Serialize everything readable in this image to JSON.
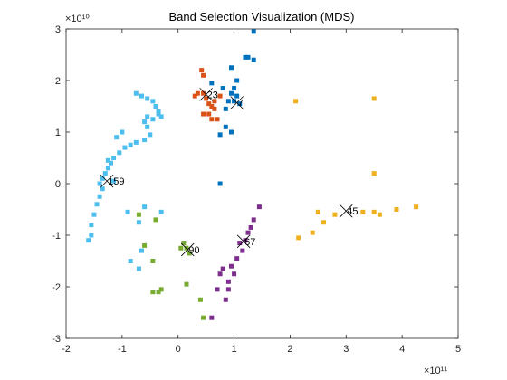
{
  "chart_data": {
    "type": "scatter",
    "title": "Band Selection Visualization (MDS)",
    "xlabel": "",
    "ylabel": "",
    "x_exponent_label": "×10¹¹",
    "y_exponent_label": "×10¹⁰",
    "xlim": [
      -2,
      5
    ],
    "ylim": [
      -3,
      3
    ],
    "x_ticks": [
      "-2",
      "-1",
      "0",
      "1",
      "2",
      "3",
      "4",
      "5"
    ],
    "y_ticks": [
      "-3",
      "-2",
      "-1",
      "0",
      "1",
      "2",
      "3"
    ],
    "grid": false,
    "legend": "none",
    "series": [
      {
        "color": "#0072BD",
        "points": [
          [
            1.35,
            2.95
          ],
          [
            1.2,
            2.45
          ],
          [
            1.25,
            2.45
          ],
          [
            1.35,
            2.4
          ],
          [
            0.95,
            2.25
          ],
          [
            1.05,
            2.0
          ],
          [
            0.6,
            1.95
          ],
          [
            0.8,
            1.85
          ],
          [
            1.0,
            1.85
          ],
          [
            0.95,
            1.75
          ],
          [
            1.05,
            1.7
          ],
          [
            1.0,
            1.6
          ],
          [
            0.9,
            1.6
          ],
          [
            1.1,
            1.55
          ],
          [
            0.85,
            1.45
          ],
          [
            0.85,
            1.1
          ],
          [
            0.95,
            1.0
          ],
          [
            0.75,
            0.95
          ],
          [
            0.75,
            0.0
          ]
        ]
      },
      {
        "color": "#D95319",
        "points": [
          [
            0.42,
            2.2
          ],
          [
            0.45,
            2.1
          ],
          [
            0.3,
            1.7
          ],
          [
            0.35,
            1.75
          ],
          [
            0.45,
            1.75
          ],
          [
            0.5,
            1.65
          ],
          [
            0.55,
            1.55
          ],
          [
            0.6,
            1.5
          ],
          [
            0.65,
            1.45
          ],
          [
            0.55,
            1.35
          ],
          [
            0.45,
            1.35
          ],
          [
            0.6,
            1.25
          ],
          [
            0.7,
            1.25
          ],
          [
            0.75,
            1.7
          ],
          [
            0.65,
            1.6
          ]
        ]
      },
      {
        "color": "#EDB120",
        "points": [
          [
            2.1,
            1.6
          ],
          [
            3.5,
            1.65
          ],
          [
            3.5,
            0.2
          ],
          [
            4.25,
            -0.45
          ],
          [
            3.9,
            -0.5
          ],
          [
            3.3,
            -0.55
          ],
          [
            2.8,
            -0.6
          ],
          [
            2.5,
            -0.55
          ],
          [
            2.6,
            -0.75
          ],
          [
            3.5,
            -0.55
          ],
          [
            3.6,
            -0.6
          ],
          [
            2.4,
            -0.95
          ],
          [
            2.15,
            -1.05
          ]
        ]
      },
      {
        "color": "#7E2F8E",
        "points": [
          [
            1.45,
            -0.45
          ],
          [
            1.35,
            -0.7
          ],
          [
            1.3,
            -0.85
          ],
          [
            1.25,
            -0.95
          ],
          [
            1.2,
            -1.1
          ],
          [
            1.1,
            -1.15
          ],
          [
            1.15,
            -1.3
          ],
          [
            1.05,
            -1.45
          ],
          [
            0.95,
            -1.6
          ],
          [
            1.0,
            -1.75
          ],
          [
            0.8,
            -1.65
          ],
          [
            0.9,
            -1.9
          ],
          [
            0.75,
            -1.75
          ],
          [
            0.9,
            -2.05
          ],
          [
            0.7,
            -2.05
          ],
          [
            0.85,
            -2.25
          ],
          [
            0.6,
            -2.6
          ]
        ]
      },
      {
        "color": "#77AC30",
        "points": [
          [
            -0.7,
            -0.6
          ],
          [
            -0.4,
            -0.7
          ],
          [
            -0.6,
            -1.2
          ],
          [
            0.1,
            -1.15
          ],
          [
            0.15,
            -1.25
          ],
          [
            0.2,
            -1.35
          ],
          [
            0.05,
            -1.25
          ],
          [
            -0.45,
            -1.5
          ],
          [
            -0.3,
            -2.05
          ],
          [
            -0.45,
            -2.1
          ],
          [
            -0.35,
            -2.1
          ],
          [
            0.15,
            -1.95
          ],
          [
            0.4,
            -2.25
          ],
          [
            0.45,
            -2.6
          ]
        ]
      },
      {
        "color": "#4DBEEE",
        "points": [
          [
            -0.75,
            1.75
          ],
          [
            -0.65,
            1.7
          ],
          [
            -0.55,
            1.65
          ],
          [
            -0.45,
            1.6
          ],
          [
            -0.4,
            1.5
          ],
          [
            -0.35,
            1.4
          ],
          [
            -0.3,
            1.3
          ],
          [
            -0.35,
            1.35
          ],
          [
            -0.45,
            1.25
          ],
          [
            -0.55,
            1.3
          ],
          [
            -0.6,
            1.2
          ],
          [
            -0.55,
            1.1
          ],
          [
            -0.5,
            0.95
          ],
          [
            -0.6,
            0.85
          ],
          [
            -0.75,
            0.8
          ],
          [
            -0.85,
            0.75
          ],
          [
            -0.95,
            0.7
          ],
          [
            -1.05,
            0.6
          ],
          [
            -1.15,
            0.5
          ],
          [
            -1.2,
            0.4
          ],
          [
            -1.25,
            0.3
          ],
          [
            -1.3,
            0.2
          ],
          [
            -1.35,
            0.1
          ],
          [
            -1.4,
            0.0
          ],
          [
            -1.35,
            -0.1
          ],
          [
            -1.4,
            -0.25
          ],
          [
            -1.45,
            -0.4
          ],
          [
            -1.5,
            -0.6
          ],
          [
            -1.55,
            -0.8
          ],
          [
            -1.55,
            -1.0
          ],
          [
            -1.6,
            -1.1
          ],
          [
            -1.15,
            0.05
          ],
          [
            -1.25,
            0.45
          ],
          [
            -0.9,
            -0.55
          ],
          [
            -0.6,
            -0.45
          ],
          [
            -0.7,
            -0.75
          ],
          [
            -0.65,
            -1.3
          ],
          [
            -0.85,
            -1.5
          ],
          [
            -0.7,
            -1.65
          ],
          [
            -0.3,
            -0.55
          ],
          [
            -1.0,
            1.0
          ],
          [
            -1.1,
            0.9
          ]
        ]
      }
    ],
    "selected": [
      {
        "label": "23",
        "x": 0.5,
        "y": 1.73
      },
      {
        "label": "7",
        "x": 1.05,
        "y": 1.57
      },
      {
        "label": "159",
        "x": -1.27,
        "y": 0.05
      },
      {
        "label": "45",
        "x": 3.0,
        "y": -0.53
      },
      {
        "label": "90",
        "x": 0.17,
        "y": -1.28
      },
      {
        "label": "67",
        "x": 1.17,
        "y": -1.12
      }
    ]
  }
}
